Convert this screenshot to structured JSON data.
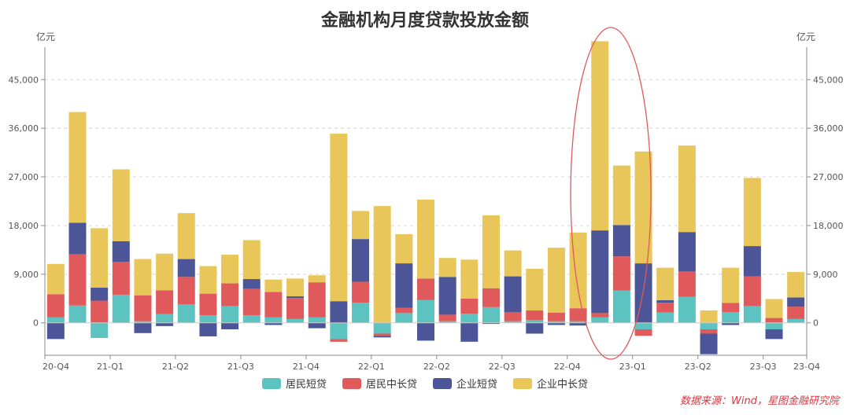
{
  "chart_data": {
    "type": "bar",
    "stacked": true,
    "title": "金融机构月度贷款投放金额",
    "ylabel_left": "亿元",
    "ylabel_right": "亿元",
    "ylim": [
      -6000,
      51000
    ],
    "yticks": [
      0,
      9000,
      18000,
      27000,
      36000,
      45000
    ],
    "ytick_labels": [
      "0",
      "9,000",
      "18,000",
      "27,000",
      "36,000",
      "45,000"
    ],
    "x_tick_labels": [
      {
        "label": "20-Q4",
        "index": 0
      },
      {
        "label": "21-Q1",
        "index": 3
      },
      {
        "label": "21-Q2",
        "index": 6
      },
      {
        "label": "21-Q3",
        "index": 9
      },
      {
        "label": "21-Q4",
        "index": 12
      },
      {
        "label": "22-Q1",
        "index": 15
      },
      {
        "label": "22-Q2",
        "index": 18
      },
      {
        "label": "22-Q3",
        "index": 21
      },
      {
        "label": "22-Q4",
        "index": 24
      },
      {
        "label": "23-Q1",
        "index": 27
      },
      {
        "label": "23-Q2",
        "index": 30
      },
      {
        "label": "23-Q3",
        "index": 33
      },
      {
        "label": "23-Q4",
        "index": 35
      }
    ],
    "series": [
      {
        "name": "居民短贷",
        "color": "#5cc3c0",
        "values": [
          1000,
          3200,
          -2800,
          5200,
          300,
          1600,
          3400,
          1400,
          3100,
          1400,
          1000,
          700,
          1000,
          -3000,
          3700,
          -2000,
          1800,
          4200,
          300,
          1700,
          2900,
          300,
          500,
          300,
          300,
          1000,
          6000,
          -1200,
          1900,
          4800,
          -1200,
          2000,
          3100,
          -1200,
          700
        ]
      },
      {
        "name": "居民中长贷",
        "color": "#e05a5b",
        "values": [
          4300,
          9500,
          4100,
          6100,
          4800,
          4400,
          5100,
          4000,
          4200,
          4900,
          4700,
          3900,
          6500,
          -500,
          3900,
          -400,
          1000,
          4000,
          1200,
          2800,
          3500,
          1700,
          1800,
          1600,
          2400,
          800,
          6300,
          -1200,
          1800,
          4700,
          -800,
          1700,
          5500,
          900,
          2300
        ]
      },
      {
        "name": "企业短贷",
        "color": "#4b5597",
        "values": [
          -3000,
          5800,
          2400,
          3800,
          -1900,
          -600,
          3300,
          -2500,
          -1200,
          1800,
          -400,
          300,
          -1000,
          4000,
          7900,
          -300,
          8200,
          -3300,
          7000,
          -3500,
          -200,
          6600,
          -2000,
          -400,
          -500,
          15300,
          5800,
          11000,
          500,
          7300,
          -3800,
          -400,
          5600,
          -1800,
          1700
        ]
      },
      {
        "name": "企业中长贷",
        "color": "#e8c65a",
        "values": [
          5600,
          20500,
          11000,
          13300,
          6700,
          6800,
          8500,
          5100,
          5300,
          7200,
          2300,
          3300,
          1300,
          31000,
          5200,
          21600,
          5400,
          14600,
          3500,
          7200,
          13500,
          4800,
          7700,
          12000,
          14000,
          35000,
          11000,
          20700,
          6000,
          16000,
          2300,
          6500,
          12600,
          3500,
          4700
        ]
      }
    ]
  },
  "legend": [
    "居民短贷",
    "居民中长贷",
    "企业短贷",
    "企业中长贷"
  ],
  "source_note": "数据来源：Wind，星图金融研究院",
  "highlight_note": "red ellipse around 22-Q4 / 23-Q1 peak months"
}
